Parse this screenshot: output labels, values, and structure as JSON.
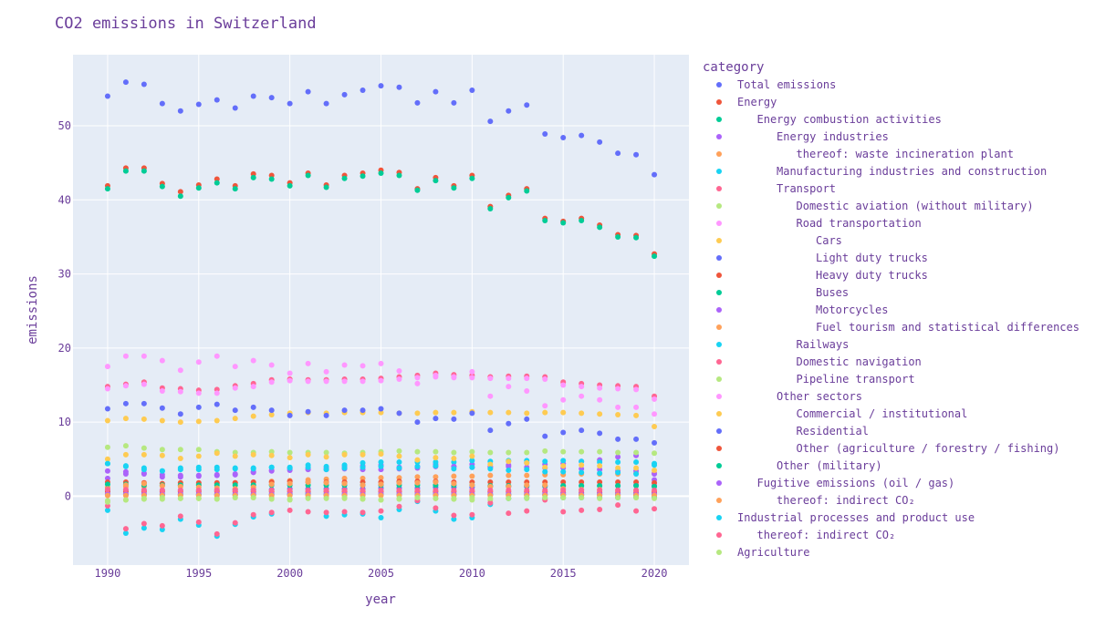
{
  "chart_data": {
    "type": "scatter",
    "title": "CO2 emissions in Switzerland",
    "xlabel": "year",
    "ylabel": "emissions",
    "xlim": [
      1988.1,
      2021.9
    ],
    "ylim": [
      -9.3,
      59.6
    ],
    "x_ticks": [
      1990,
      1995,
      2000,
      2005,
      2010,
      2015,
      2020
    ],
    "y_ticks": [
      0,
      10,
      20,
      30,
      40,
      50
    ],
    "grid": true,
    "legend_title": "category",
    "legend_position": "right",
    "x": [
      1990,
      1991,
      1992,
      1993,
      1994,
      1995,
      1996,
      1997,
      1998,
      1999,
      2000,
      2001,
      2002,
      2003,
      2004,
      2005,
      2006,
      2007,
      2008,
      2009,
      2010,
      2011,
      2012,
      2013,
      2014,
      2015,
      2016,
      2017,
      2018,
      2019,
      2020
    ],
    "series": [
      {
        "name": "Total emissions",
        "indent": 0,
        "color": "#636efa",
        "values": [
          54.0,
          55.9,
          55.6,
          53.0,
          52.0,
          52.9,
          53.5,
          52.4,
          54.0,
          53.8,
          53.0,
          54.6,
          53.0,
          54.2,
          54.8,
          55.4,
          55.2,
          53.1,
          54.6,
          53.1,
          54.8,
          50.6,
          52.0,
          52.8,
          48.9,
          48.4,
          48.7,
          47.8,
          46.3,
          46.1,
          43.4
        ]
      },
      {
        "name": "Energy",
        "indent": 0,
        "color": "#ef553b",
        "values": [
          41.9,
          44.3,
          44.3,
          42.2,
          41.1,
          42.0,
          42.8,
          41.9,
          43.5,
          43.3,
          42.3,
          43.6,
          42.0,
          43.3,
          43.6,
          44.0,
          43.7,
          41.5,
          43.0,
          41.9,
          43.3,
          39.1,
          40.6,
          41.5,
          37.5,
          37.1,
          37.5,
          36.6,
          35.3,
          35.2,
          32.7
        ]
      },
      {
        "name": "Energy combustion activities",
        "indent": 1,
        "color": "#00cc96",
        "values": [
          41.5,
          43.9,
          43.9,
          41.8,
          40.5,
          41.6,
          42.3,
          41.5,
          43.0,
          42.8,
          41.9,
          43.3,
          41.7,
          42.9,
          43.2,
          43.6,
          43.3,
          41.3,
          42.6,
          41.6,
          42.9,
          38.8,
          40.3,
          41.2,
          37.2,
          36.9,
          37.2,
          36.3,
          35.0,
          34.9,
          32.4
        ]
      },
      {
        "name": "Energy industries",
        "indent": 2,
        "color": "#ab63fa",
        "values": [
          2.4,
          3.0,
          3.0,
          2.6,
          2.6,
          2.8,
          2.9,
          2.9,
          3.2,
          3.4,
          3.5,
          3.7,
          3.8,
          4.0,
          4.1,
          4.2,
          3.9,
          4.0,
          4.3,
          4.0,
          4.3,
          4.0,
          4.2,
          4.5,
          4.3,
          4.4,
          4.7,
          4.9,
          5.3,
          5.5,
          2.2
        ]
      },
      {
        "name": "thereof: waste incineration plant",
        "indent": 3,
        "color": "#ffa15a",
        "values": [
          1.2,
          1.3,
          1.3,
          1.4,
          1.5,
          1.6,
          1.7,
          1.8,
          1.9,
          2.0,
          2.1,
          2.2,
          2.3,
          2.4,
          2.4,
          2.5,
          2.5,
          2.6,
          2.6,
          2.7,
          2.7,
          2.8,
          2.8,
          2.8,
          2.9,
          2.9,
          3.0,
          3.0,
          3.0,
          3.1,
          3.1
        ]
      },
      {
        "name": "Manufacturing industries and construction",
        "indent": 2,
        "color": "#19d3f3",
        "values": [
          4.4,
          4.0,
          3.8,
          3.4,
          3.6,
          3.6,
          3.9,
          3.8,
          3.8,
          3.9,
          3.9,
          4.2,
          4.0,
          4.2,
          4.5,
          4.6,
          4.6,
          4.6,
          4.6,
          4.6,
          4.8,
          4.7,
          4.8,
          4.8,
          4.7,
          4.8,
          4.7,
          4.6,
          4.6,
          4.6,
          4.4
        ]
      },
      {
        "name": "Transport",
        "indent": 2,
        "color": "#ff6692",
        "values": [
          14.8,
          15.1,
          15.4,
          14.6,
          14.5,
          14.3,
          14.4,
          14.9,
          15.2,
          15.7,
          15.8,
          15.7,
          15.7,
          15.8,
          15.8,
          15.9,
          16.1,
          16.3,
          16.6,
          16.4,
          16.3,
          16.1,
          16.2,
          16.2,
          16.1,
          15.4,
          15.2,
          15.0,
          14.9,
          14.8,
          13.5
        ]
      },
      {
        "name": "Domestic aviation (without military)",
        "indent": 3,
        "color": "#b6e880",
        "values": [
          -0.6,
          -0.5,
          -0.4,
          -0.4,
          -0.3,
          -0.3,
          -0.3,
          -0.2,
          -0.2,
          -0.2,
          -0.5,
          -0.2,
          -0.2,
          -0.3,
          -0.4,
          -0.5,
          -0.4,
          -0.3,
          -0.3,
          -0.4,
          -0.5,
          -0.5,
          -0.3,
          -0.3,
          -0.3,
          -0.2,
          -0.2,
          -0.2,
          -0.2,
          -0.2,
          -0.1
        ]
      },
      {
        "name": "Road transportation",
        "indent": 3,
        "color": "#ff97ff",
        "values": [
          14.5,
          14.9,
          15.1,
          14.2,
          14.1,
          13.9,
          13.9,
          14.6,
          14.8,
          15.4,
          15.6,
          15.5,
          15.5,
          15.5,
          15.5,
          15.6,
          15.8,
          16.0,
          16.3,
          16.1,
          16.0,
          15.9,
          15.9,
          15.9,
          15.8,
          15.0,
          14.8,
          14.6,
          14.5,
          14.4,
          13.1
        ]
      },
      {
        "name": "Cars",
        "indent": 4,
        "color": "#fecb52",
        "values": [
          10.2,
          10.5,
          10.4,
          10.2,
          10.0,
          10.1,
          10.2,
          10.5,
          10.8,
          11.0,
          11.2,
          11.3,
          11.2,
          11.3,
          11.3,
          11.3,
          11.2,
          11.2,
          11.3,
          11.3,
          11.4,
          11.3,
          11.3,
          11.2,
          11.3,
          11.3,
          11.2,
          11.1,
          11.0,
          10.9,
          9.4
        ]
      },
      {
        "name": "Light duty trucks",
        "indent": 4,
        "color": "#636efa",
        "values": [
          0.7,
          0.8,
          0.8,
          0.8,
          0.8,
          0.8,
          0.8,
          0.9,
          0.9,
          0.9,
          1.0,
          1.0,
          1.0,
          1.0,
          1.0,
          1.1,
          1.1,
          1.1,
          1.2,
          1.2,
          1.2,
          1.3,
          1.3,
          1.3,
          1.3,
          1.4,
          1.4,
          1.4,
          1.4,
          1.5,
          1.4
        ]
      },
      {
        "name": "Heavy duty trucks",
        "indent": 4,
        "color": "#ef553b",
        "values": [
          1.9,
          1.9,
          1.8,
          1.7,
          1.8,
          1.8,
          1.8,
          1.8,
          1.9,
          1.9,
          2.0,
          1.9,
          1.9,
          1.9,
          1.9,
          1.9,
          2.0,
          2.0,
          2.0,
          1.9,
          1.9,
          1.9,
          1.9,
          1.9,
          1.9,
          1.9,
          1.9,
          1.9,
          1.9,
          1.9,
          1.8
        ]
      },
      {
        "name": "Buses",
        "indent": 4,
        "color": "#00cc96",
        "values": [
          1.6,
          1.6,
          1.5,
          1.5,
          1.5,
          1.5,
          1.5,
          1.5,
          1.5,
          1.5,
          1.5,
          1.5,
          1.5,
          1.5,
          1.5,
          1.5,
          1.5,
          1.5,
          1.5,
          1.5,
          1.5,
          1.4,
          1.4,
          1.4,
          1.4,
          1.4,
          1.4,
          1.4,
          1.4,
          1.4,
          1.3
        ]
      },
      {
        "name": "Motorcycles",
        "indent": 4,
        "color": "#ab63fa",
        "values": [
          3.4,
          3.3,
          3.1,
          2.9,
          2.8,
          2.7,
          2.8,
          3.0,
          3.3,
          3.5,
          3.7,
          3.6,
          3.6,
          3.7,
          3.6,
          3.6,
          3.7,
          3.8,
          4.0,
          4.0,
          3.9,
          3.9,
          4.0,
          3.9,
          3.8,
          3.8,
          3.7,
          3.6,
          3.4,
          3.4,
          3.0
        ]
      },
      {
        "name": "Fuel tourism and statistical differences",
        "indent": 4,
        "color": "#ffa15a",
        "values": [
          1.0,
          1.5,
          1.7,
          1.4,
          1.3,
          1.2,
          1.1,
          1.0,
          1.2,
          1.6,
          1.7,
          1.9,
          1.8,
          1.7,
          1.5,
          1.6,
          1.8,
          1.8,
          1.9,
          1.7,
          1.5,
          1.3,
          1.3,
          1.5,
          1.5,
          1.0,
          0.9,
          0.9,
          0.8,
          0.8,
          0.6
        ]
      },
      {
        "name": "Railways",
        "indent": 3,
        "color": "#19d3f3",
        "values": [
          -1.9,
          -5.0,
          -4.3,
          -4.5,
          -3.1,
          -3.9,
          -5.4,
          -3.8,
          -2.8,
          -2.4,
          0.3,
          0.4,
          -2.7,
          -2.5,
          -2.4,
          -2.9,
          -1.8,
          -0.7,
          -2.0,
          -3.1,
          -2.9,
          -1.1,
          -0.3,
          -0.2,
          -0.3,
          -0.2,
          -0.2,
          -0.2,
          -0.2,
          -0.1,
          -0.1
        ]
      },
      {
        "name": "Domestic navigation",
        "indent": 3,
        "color": "#ff6692",
        "values": [
          -1.3,
          -4.4,
          -3.7,
          -4.0,
          -2.7,
          -3.5,
          -5.1,
          -3.6,
          -2.5,
          -2.2,
          -1.9,
          -2.1,
          -2.2,
          -2.1,
          -2.2,
          -2.0,
          -1.4,
          -0.6,
          -1.6,
          -2.6,
          -2.5,
          -0.9,
          -2.3,
          -2.0,
          -0.5,
          -2.1,
          -1.9,
          -1.8,
          -1.2,
          -2.0,
          -1.7
        ]
      },
      {
        "name": "Pipeline transport",
        "indent": 3,
        "color": "#b6e880",
        "values": [
          6.6,
          6.8,
          6.5,
          6.3,
          6.3,
          6.3,
          6.0,
          5.9,
          5.9,
          6.0,
          5.9,
          5.9,
          5.9,
          5.8,
          5.9,
          6.0,
          6.1,
          6.0,
          6.0,
          5.9,
          6.0,
          5.9,
          5.9,
          5.9,
          6.1,
          6.0,
          6.0,
          6.0,
          5.9,
          5.9,
          5.8
        ]
      },
      {
        "name": "Other sectors",
        "indent": 2,
        "color": "#ff97ff",
        "values": [
          17.5,
          18.9,
          18.9,
          18.3,
          17.0,
          18.1,
          18.9,
          17.5,
          18.3,
          17.7,
          16.6,
          17.9,
          16.8,
          17.7,
          17.6,
          17.9,
          16.9,
          15.2,
          16.1,
          16.0,
          16.8,
          13.5,
          14.8,
          14.2,
          12.2,
          13.0,
          13.5,
          13.0,
          12.0,
          12.0,
          11.1
        ]
      },
      {
        "name": "Commercial / institutional",
        "indent": 3,
        "color": "#fecb52",
        "values": [
          5.0,
          5.6,
          5.6,
          5.5,
          5.1,
          5.4,
          5.8,
          5.4,
          5.6,
          5.5,
          5.2,
          5.6,
          5.3,
          5.6,
          5.6,
          5.7,
          5.4,
          4.9,
          5.2,
          5.1,
          5.4,
          4.3,
          4.7,
          4.5,
          3.9,
          4.1,
          4.2,
          4.1,
          3.8,
          3.8,
          3.5
        ]
      },
      {
        "name": "Residential",
        "indent": 3,
        "color": "#636efa",
        "values": [
          11.8,
          12.5,
          12.5,
          11.9,
          11.1,
          12.0,
          12.4,
          11.6,
          12.0,
          11.6,
          10.9,
          11.4,
          10.9,
          11.6,
          11.6,
          11.8,
          11.2,
          10.0,
          10.5,
          10.4,
          11.2,
          8.9,
          9.8,
          10.4,
          8.1,
          8.6,
          8.9,
          8.5,
          7.7,
          7.7,
          7.2
        ]
      },
      {
        "name": "Other (agriculture / forestry / fishing)",
        "indent": 3,
        "color": "#ef553b",
        "values": [
          0.6,
          0.6,
          0.6,
          0.6,
          0.6,
          0.6,
          0.6,
          0.6,
          0.6,
          0.6,
          0.6,
          0.6,
          0.6,
          0.6,
          0.6,
          0.6,
          0.6,
          0.6,
          0.6,
          0.6,
          0.6,
          0.6,
          0.6,
          0.6,
          0.6,
          0.5,
          0.5,
          0.5,
          0.5,
          0.5,
          0.5
        ]
      },
      {
        "name": "Other (military)",
        "indent": 2,
        "color": "#00cc96",
        "values": [
          0.2,
          0.2,
          0.2,
          0.2,
          0.2,
          0.2,
          0.2,
          0.2,
          0.2,
          0.2,
          0.2,
          0.2,
          0.2,
          0.2,
          0.2,
          0.2,
          0.2,
          0.2,
          0.2,
          0.2,
          0.2,
          0.2,
          0.2,
          0.2,
          0.2,
          0.2,
          0.2,
          0.2,
          0.2,
          0.2,
          0.2
        ]
      },
      {
        "name": "Fugitive emissions (oil / gas)",
        "indent": 1,
        "color": "#ab63fa",
        "values": [
          0.3,
          0.3,
          0.3,
          0.3,
          0.3,
          0.3,
          0.3,
          0.3,
          0.3,
          0.3,
          0.3,
          0.3,
          0.3,
          0.3,
          0.3,
          0.3,
          0.3,
          0.3,
          0.3,
          0.3,
          0.3,
          0.3,
          0.3,
          0.3,
          0.3,
          0.3,
          0.3,
          0.3,
          0.3,
          0.3,
          0.3
        ]
      },
      {
        "name": "thereof: indirect CO₂",
        "indent": 2,
        "color": "#ffa15a",
        "values": [
          0.1,
          0.1,
          0.1,
          0.1,
          0.1,
          0.1,
          0.1,
          0.1,
          0.1,
          0.1,
          0.1,
          0.1,
          0.1,
          0.1,
          0.1,
          0.1,
          0.1,
          0.1,
          0.1,
          0.1,
          0.1,
          0.1,
          0.1,
          0.1,
          0.1,
          0.1,
          0.1,
          0.1,
          0.1,
          0.1,
          0.1
        ]
      },
      {
        "name": "Industrial processes and product use",
        "indent": 0,
        "color": "#19d3f3",
        "values": [
          4.4,
          4.1,
          3.6,
          3.4,
          3.8,
          3.9,
          3.6,
          3.7,
          3.7,
          3.9,
          3.8,
          3.9,
          3.6,
          3.8,
          3.9,
          4.0,
          3.8,
          4.0,
          4.1,
          3.7,
          3.9,
          3.7,
          3.5,
          3.6,
          3.3,
          3.3,
          3.2,
          3.1,
          3.2,
          3.0,
          4.2
        ]
      },
      {
        "name": "thereof: indirect CO₂",
        "indent": 1,
        "color": "#ff6692",
        "values": [
          0.9,
          0.9,
          0.8,
          0.8,
          0.8,
          0.8,
          0.8,
          0.8,
          0.8,
          0.8,
          0.8,
          0.8,
          0.8,
          0.8,
          0.8,
          0.8,
          0.8,
          0.8,
          0.8,
          0.8,
          0.8,
          0.8,
          0.8,
          0.8,
          0.8,
          0.8,
          0.8,
          0.8,
          0.8,
          0.8,
          0.8
        ]
      },
      {
        "name": "Agriculture",
        "indent": 0,
        "color": "#b6e880",
        "values": [
          -0.8,
          -0.5,
          -0.3,
          -0.2,
          -0.3,
          -0.3,
          -0.4,
          -0.2,
          -0.2,
          -0.4,
          -0.4,
          -0.3,
          -0.3,
          -0.2,
          -0.3,
          -0.5,
          -0.3,
          -0.2,
          -0.3,
          -0.3,
          -0.2,
          -0.3,
          -0.3,
          -0.2,
          -0.2,
          -0.2,
          -0.2,
          -0.3,
          -0.2,
          -0.2,
          -0.3
        ]
      }
    ]
  }
}
